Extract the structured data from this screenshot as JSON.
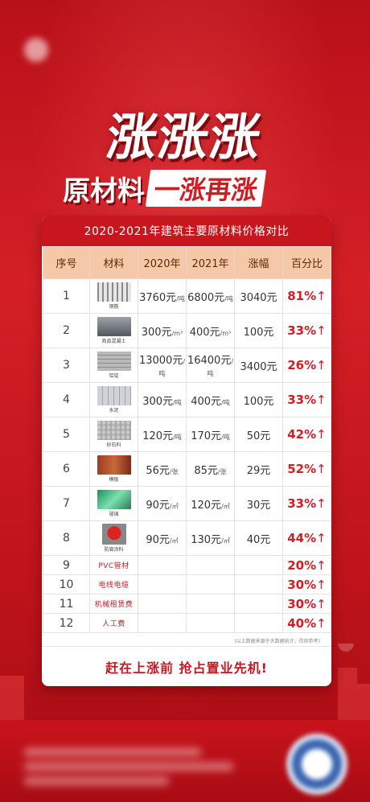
{
  "header": {
    "headline": "涨涨涨",
    "sub_left": "原材料",
    "sub_right": "一涨再涨"
  },
  "card": {
    "title": "2020-2021年建筑主要原材料价格对比",
    "columns": [
      "序号",
      "材料",
      "2020年",
      "2021年",
      "涨幅",
      "百分比"
    ],
    "rows": [
      {
        "no": "1",
        "material": "钢筋",
        "p2020": "3760元",
        "u2020": "/吨",
        "p2021": "6800元",
        "u2021": "/吨",
        "rise": "3040元",
        "pct": "81%"
      },
      {
        "no": "2",
        "material": "商品混凝土",
        "p2020": "300元",
        "u2020": "/m³",
        "p2021": "400元",
        "u2021": "/m³",
        "rise": "100元",
        "pct": "33%"
      },
      {
        "no": "3",
        "material": "铝锭",
        "p2020": "13000元",
        "u2020": "/吨",
        "p2021": "16400元",
        "u2021": "/吨",
        "rise": "3400元",
        "pct": "26%"
      },
      {
        "no": "4",
        "material": "水泥",
        "p2020": "300元",
        "u2020": "/吨",
        "p2021": "400元",
        "u2021": "/吨",
        "rise": "100元",
        "pct": "33%"
      },
      {
        "no": "5",
        "material": "砂石料",
        "p2020": "120元",
        "u2020": "/吨",
        "p2021": "170元",
        "u2021": "/吨",
        "rise": "50元",
        "pct": "42%"
      },
      {
        "no": "6",
        "material": "模板",
        "p2020": "56元",
        "u2020": "/张",
        "p2021": "85元",
        "u2021": "/张",
        "rise": "29元",
        "pct": "52%"
      },
      {
        "no": "7",
        "material": "玻璃",
        "p2020": "90元",
        "u2020": "/㎡",
        "p2021": "120元",
        "u2021": "/㎡",
        "rise": "30元",
        "pct": "33%"
      },
      {
        "no": "8",
        "material": "防腐涂料",
        "p2020": "90元",
        "u2020": "/㎡",
        "p2021": "130元",
        "u2021": "/㎡",
        "rise": "40元",
        "pct": "44%"
      },
      {
        "no": "9",
        "material": "PVC管材",
        "p2020": "",
        "u2020": "",
        "p2021": "",
        "u2021": "",
        "rise": "",
        "pct": "20%"
      },
      {
        "no": "10",
        "material": "电线电缆",
        "p2020": "",
        "u2020": "",
        "p2021": "",
        "u2021": "",
        "rise": "",
        "pct": "30%"
      },
      {
        "no": "11",
        "material": "机械租赁费",
        "p2020": "",
        "u2020": "",
        "p2021": "",
        "u2021": "",
        "rise": "",
        "pct": "30%"
      },
      {
        "no": "12",
        "material": "人工费",
        "p2020": "",
        "u2020": "",
        "p2021": "",
        "u2021": "",
        "rise": "",
        "pct": "40%"
      }
    ],
    "arrow": "↑",
    "note": "(以上数据来源于大数据统计，仅供参考)",
    "slogan": "赶在上涨前  抢占置业先机!"
  },
  "colors": {
    "primary_red": "#c8161e",
    "header_cell": "#f5c9a8",
    "percent_text": "#d51c25"
  }
}
